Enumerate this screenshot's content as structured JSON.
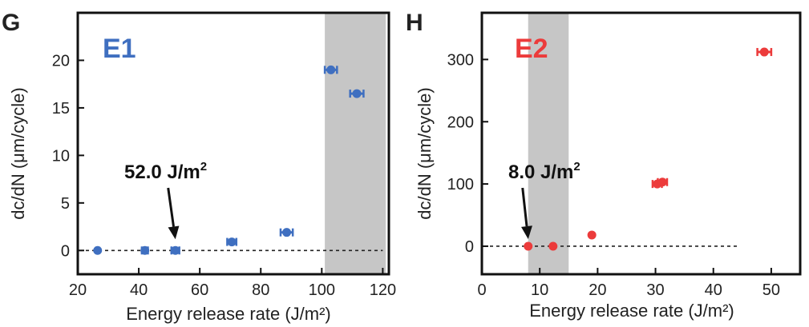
{
  "chart_data": [
    {
      "type": "scatter",
      "panel_letter": "G",
      "series_label": "E1",
      "color": "#3f6fc0",
      "xlabel": "Energy release rate (J/m²)",
      "ylabel": "dc/dN (μm/cycle)",
      "xlim": [
        20,
        122
      ],
      "ylim": [
        -2.5,
        25
      ],
      "xticks": [
        "20",
        "40",
        "60",
        "80",
        "100",
        "120"
      ],
      "yticks": [
        "0",
        "5",
        "10",
        "15",
        "20"
      ],
      "shaded_region": [
        101,
        121
      ],
      "shade_color": "#c6c6c6",
      "zero_line": true,
      "zero_line_end": 120,
      "annotation": {
        "text": "52.0 J/m",
        "sup": "2",
        "x": 52.0
      },
      "points": [
        {
          "x": 26.5,
          "y": 0.0,
          "xerr": 0.0
        },
        {
          "x": 42.0,
          "y": 0.0,
          "xerr": 1.0
        },
        {
          "x": 52.0,
          "y": 0.0,
          "xerr": 1.3
        },
        {
          "x": 70.5,
          "y": 0.9,
          "xerr": 1.5
        },
        {
          "x": 88.5,
          "y": 1.9,
          "xerr": 2.0
        },
        {
          "x": 103.0,
          "y": 19.0,
          "xerr": 2.0
        },
        {
          "x": 111.5,
          "y": 16.5,
          "xerr": 2.2
        }
      ]
    },
    {
      "type": "scatter",
      "panel_letter": "H",
      "series_label": "E2",
      "color": "#ec3b3b",
      "xlabel": "Energy release rate (J/m²)",
      "ylabel": "dc/dN (μm/cycle)",
      "xlim": [
        0,
        55
      ],
      "ylim": [
        -45,
        375
      ],
      "xticks": [
        "0",
        "10",
        "20",
        "30",
        "40",
        "50"
      ],
      "yticks": [
        "0",
        "100",
        "200",
        "300"
      ],
      "shaded_region": [
        8,
        15
      ],
      "shade_color": "#c6c6c6",
      "zero_line": true,
      "zero_line_end": 44.5,
      "annotation": {
        "text": "8.0 J/m",
        "sup": "2",
        "x": 8.0
      },
      "points": [
        {
          "x": 8.0,
          "y": 0,
          "xerr": 0.0
        },
        {
          "x": 12.3,
          "y": 0,
          "xerr": 0.0
        },
        {
          "x": 19.0,
          "y": 18,
          "xerr": 0.0
        },
        {
          "x": 30.3,
          "y": 100,
          "xerr": 0.8
        },
        {
          "x": 31.2,
          "y": 103,
          "xerr": 0.8
        },
        {
          "x": 48.8,
          "y": 312,
          "xerr": 1.2
        }
      ]
    }
  ]
}
